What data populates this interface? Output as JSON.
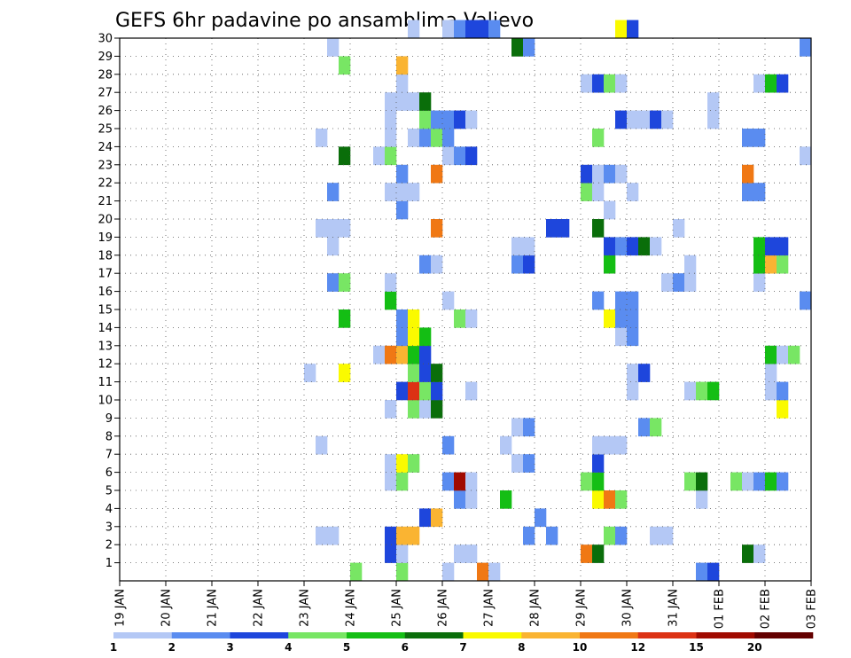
{
  "chart_data": {
    "type": "heatmap",
    "title": "GEFS 6hr padavine po ansamblima Valjevo",
    "xlabel": "",
    "ylabel": "",
    "x_tick_labels": [
      "19 JAN",
      "20 JAN",
      "21 JAN",
      "22 JAN",
      "23 JAN",
      "24 JAN",
      "25 JAN",
      "26 JAN",
      "27 JAN",
      "28 JAN",
      "29 JAN",
      "30 JAN",
      "31 JAN",
      "01 FEB",
      "02 FEB",
      "03 FEB"
    ],
    "y_tick_labels": [
      "1",
      "2",
      "3",
      "4",
      "5",
      "6",
      "7",
      "8",
      "9",
      "10",
      "11",
      "12",
      "13",
      "14",
      "15",
      "16",
      "17",
      "18",
      "19",
      "20",
      "21",
      "22",
      "23",
      "24",
      "25",
      "26",
      "27",
      "28",
      "29",
      "30"
    ],
    "ylim": [
      0,
      30
    ],
    "steps_per_day": 4,
    "n_steps": 60,
    "grid": true,
    "legend": {
      "placement": "bottom",
      "labels": [
        "1",
        "2",
        "3",
        "4",
        "5",
        "6",
        "7",
        "8",
        "10",
        "12",
        "15",
        "20"
      ],
      "colors": [
        "#b4c8f5",
        "#5a8cf0",
        "#1e46dc",
        "#78e664",
        "#14be14",
        "#0a6e0a",
        "#fafa00",
        "#fab432",
        "#f07814",
        "#dc3214",
        "#a00a00",
        "#640000"
      ]
    },
    "colors": {
      "1": "#b4c8f5",
      "2": "#5a8cf0",
      "3": "#1e46dc",
      "4": "#78e664",
      "5": "#14be14",
      "6": "#0a6e0a",
      "7": "#fafa00",
      "8": "#fab432",
      "10": "#f07814",
      "12": "#dc3214",
      "15": "#a00a00",
      "20": "#640000"
    },
    "cells": [
      [
        0,
        20,
        4
      ],
      [
        0,
        24,
        4
      ],
      [
        0,
        28,
        1
      ],
      [
        0,
        31,
        10
      ],
      [
        0,
        32,
        1
      ],
      [
        0,
        50,
        2
      ],
      [
        0,
        51,
        3
      ],
      [
        1,
        23,
        3
      ],
      [
        1,
        24,
        1
      ],
      [
        1,
        29,
        1
      ],
      [
        1,
        30,
        1
      ],
      [
        1,
        40,
        10
      ],
      [
        1,
        41,
        6
      ],
      [
        1,
        54,
        6
      ],
      [
        1,
        55,
        1
      ],
      [
        2,
        17,
        1
      ],
      [
        2,
        18,
        1
      ],
      [
        2,
        23,
        3
      ],
      [
        2,
        24,
        8
      ],
      [
        2,
        25,
        8
      ],
      [
        2,
        35,
        2
      ],
      [
        2,
        37,
        2
      ],
      [
        2,
        42,
        4
      ],
      [
        2,
        43,
        2
      ],
      [
        2,
        46,
        1
      ],
      [
        2,
        47,
        1
      ],
      [
        3,
        26,
        3
      ],
      [
        3,
        27,
        8
      ],
      [
        3,
        36,
        2
      ],
      [
        4,
        29,
        2
      ],
      [
        4,
        30,
        1
      ],
      [
        4,
        33,
        5
      ],
      [
        4,
        41,
        7
      ],
      [
        4,
        42,
        10
      ],
      [
        4,
        43,
        4
      ],
      [
        4,
        50,
        1
      ],
      [
        5,
        23,
        1
      ],
      [
        5,
        24,
        4
      ],
      [
        5,
        28,
        2
      ],
      [
        5,
        29,
        15
      ],
      [
        5,
        30,
        1
      ],
      [
        5,
        40,
        4
      ],
      [
        5,
        41,
        5
      ],
      [
        5,
        49,
        4
      ],
      [
        5,
        50,
        6
      ],
      [
        5,
        53,
        4
      ],
      [
        5,
        54,
        1
      ],
      [
        5,
        55,
        2
      ],
      [
        5,
        56,
        5
      ],
      [
        5,
        57,
        2
      ],
      [
        6,
        23,
        1
      ],
      [
        6,
        24,
        7
      ],
      [
        6,
        25,
        4
      ],
      [
        6,
        34,
        1
      ],
      [
        6,
        35,
        2
      ],
      [
        6,
        41,
        3
      ],
      [
        7,
        17,
        1
      ],
      [
        7,
        28,
        2
      ],
      [
        7,
        33,
        1
      ],
      [
        7,
        41,
        1
      ],
      [
        7,
        42,
        1
      ],
      [
        7,
        43,
        1
      ],
      [
        8,
        34,
        1
      ],
      [
        8,
        35,
        2
      ],
      [
        8,
        45,
        2
      ],
      [
        8,
        46,
        4
      ],
      [
        9,
        23,
        1
      ],
      [
        9,
        25,
        4
      ],
      [
        9,
        26,
        1
      ],
      [
        9,
        27,
        6
      ],
      [
        9,
        57,
        7
      ],
      [
        10,
        24,
        3
      ],
      [
        10,
        25,
        12
      ],
      [
        10,
        26,
        4
      ],
      [
        10,
        27,
        3
      ],
      [
        10,
        30,
        1
      ],
      [
        10,
        44,
        1
      ],
      [
        10,
        49,
        1
      ],
      [
        10,
        50,
        4
      ],
      [
        10,
        51,
        5
      ],
      [
        10,
        56,
        1
      ],
      [
        10,
        57,
        2
      ],
      [
        11,
        16,
        1
      ],
      [
        11,
        19,
        7
      ],
      [
        11,
        25,
        4
      ],
      [
        11,
        26,
        3
      ],
      [
        11,
        27,
        6
      ],
      [
        11,
        44,
        1
      ],
      [
        11,
        45,
        3
      ],
      [
        11,
        56,
        1
      ],
      [
        12,
        22,
        1
      ],
      [
        12,
        23,
        10
      ],
      [
        12,
        24,
        8
      ],
      [
        12,
        25,
        5
      ],
      [
        12,
        26,
        3
      ],
      [
        12,
        56,
        5
      ],
      [
        12,
        57,
        1
      ],
      [
        12,
        58,
        4
      ],
      [
        13,
        24,
        2
      ],
      [
        13,
        25,
        7
      ],
      [
        13,
        26,
        5
      ],
      [
        13,
        43,
        1
      ],
      [
        13,
        44,
        2
      ],
      [
        14,
        19,
        5
      ],
      [
        14,
        24,
        2
      ],
      [
        14,
        25,
        7
      ],
      [
        14,
        29,
        4
      ],
      [
        14,
        30,
        1
      ],
      [
        14,
        42,
        7
      ],
      [
        14,
        43,
        2
      ],
      [
        14,
        44,
        2
      ],
      [
        15,
        23,
        5
      ],
      [
        15,
        28,
        1
      ],
      [
        15,
        41,
        2
      ],
      [
        15,
        43,
        2
      ],
      [
        15,
        44,
        2
      ],
      [
        15,
        59,
        2
      ],
      [
        16,
        18,
        2
      ],
      [
        16,
        19,
        4
      ],
      [
        16,
        23,
        1
      ],
      [
        16,
        47,
        1
      ],
      [
        16,
        48,
        2
      ],
      [
        16,
        49,
        1
      ],
      [
        16,
        55,
        1
      ],
      [
        17,
        26,
        2
      ],
      [
        17,
        27,
        1
      ],
      [
        17,
        34,
        2
      ],
      [
        17,
        35,
        3
      ],
      [
        17,
        42,
        5
      ],
      [
        17,
        49,
        1
      ],
      [
        17,
        55,
        5
      ],
      [
        17,
        56,
        8
      ],
      [
        17,
        57,
        4
      ],
      [
        18,
        18,
        1
      ],
      [
        18,
        34,
        1
      ],
      [
        18,
        35,
        1
      ],
      [
        18,
        42,
        3
      ],
      [
        18,
        43,
        2
      ],
      [
        18,
        44,
        3
      ],
      [
        18,
        45,
        6
      ],
      [
        18,
        46,
        1
      ],
      [
        18,
        55,
        5
      ],
      [
        18,
        56,
        3
      ],
      [
        18,
        57,
        3
      ],
      [
        19,
        17,
        1
      ],
      [
        19,
        18,
        1
      ],
      [
        19,
        19,
        1
      ],
      [
        19,
        27,
        10
      ],
      [
        19,
        37,
        3
      ],
      [
        19,
        38,
        3
      ],
      [
        19,
        41,
        6
      ],
      [
        19,
        48,
        1
      ],
      [
        20,
        24,
        2
      ],
      [
        20,
        42,
        1
      ],
      [
        21,
        18,
        2
      ],
      [
        21,
        23,
        1
      ],
      [
        21,
        24,
        1
      ],
      [
        21,
        25,
        1
      ],
      [
        21,
        40,
        4
      ],
      [
        21,
        41,
        1
      ],
      [
        21,
        44,
        1
      ],
      [
        21,
        54,
        2
      ],
      [
        21,
        55,
        2
      ],
      [
        22,
        24,
        2
      ],
      [
        22,
        27,
        10
      ],
      [
        22,
        40,
        3
      ],
      [
        22,
        41,
        1
      ],
      [
        22,
        42,
        2
      ],
      [
        22,
        43,
        1
      ],
      [
        22,
        54,
        10
      ],
      [
        23,
        19,
        6
      ],
      [
        23,
        22,
        1
      ],
      [
        23,
        23,
        4
      ],
      [
        23,
        28,
        1
      ],
      [
        23,
        29,
        2
      ],
      [
        23,
        30,
        3
      ],
      [
        23,
        59,
        1
      ],
      [
        24,
        17,
        1
      ],
      [
        24,
        23,
        1
      ],
      [
        24,
        25,
        1
      ],
      [
        24,
        26,
        2
      ],
      [
        24,
        27,
        4
      ],
      [
        24,
        28,
        2
      ],
      [
        24,
        41,
        4
      ],
      [
        24,
        54,
        2
      ],
      [
        24,
        55,
        2
      ],
      [
        25,
        23,
        1
      ],
      [
        25,
        26,
        4
      ],
      [
        25,
        27,
        2
      ],
      [
        25,
        28,
        2
      ],
      [
        25,
        29,
        3
      ],
      [
        25,
        30,
        1
      ],
      [
        25,
        43,
        3
      ],
      [
        25,
        44,
        1
      ],
      [
        25,
        45,
        1
      ],
      [
        25,
        46,
        3
      ],
      [
        25,
        47,
        1
      ],
      [
        25,
        51,
        1
      ],
      [
        26,
        23,
        1
      ],
      [
        26,
        24,
        1
      ],
      [
        26,
        25,
        1
      ],
      [
        26,
        26,
        6
      ],
      [
        26,
        51,
        1
      ],
      [
        27,
        24,
        1
      ],
      [
        27,
        40,
        1
      ],
      [
        27,
        41,
        3
      ],
      [
        27,
        42,
        4
      ],
      [
        27,
        43,
        1
      ],
      [
        27,
        55,
        1
      ],
      [
        27,
        56,
        5
      ],
      [
        27,
        57,
        3
      ],
      [
        28,
        19,
        4
      ],
      [
        28,
        24,
        8
      ],
      [
        29,
        18,
        1
      ],
      [
        29,
        34,
        6
      ],
      [
        29,
        35,
        2
      ],
      [
        29,
        59,
        2
      ],
      [
        30,
        25,
        1
      ],
      [
        30,
        28,
        1
      ],
      [
        30,
        29,
        2
      ],
      [
        30,
        30,
        3
      ],
      [
        30,
        31,
        3
      ],
      [
        30,
        32,
        2
      ],
      [
        30,
        43,
        7
      ],
      [
        30,
        44,
        3
      ]
    ]
  }
}
